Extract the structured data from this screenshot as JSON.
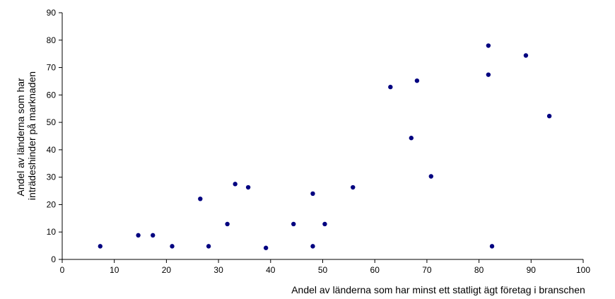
{
  "chart_data": {
    "type": "scatter",
    "xlabel": "Andel av länderna som har minst ett statligt ägt företag i branschen",
    "ylabel": [
      "Andel av länderna som har",
      "inträdeshinder på marknaden"
    ],
    "xlim": [
      0,
      100
    ],
    "ylim": [
      0,
      90
    ],
    "xticks": [
      0,
      10,
      20,
      30,
      40,
      50,
      60,
      70,
      80,
      90,
      100
    ],
    "yticks": [
      0,
      10,
      20,
      30,
      40,
      50,
      60,
      70,
      80,
      90
    ],
    "grid": false,
    "legend": "none",
    "colors": {
      "marker": "#000080",
      "axis": "#000000"
    },
    "points": [
      {
        "x": 7.3,
        "y": 4.8
      },
      {
        "x": 14.6,
        "y": 8.8
      },
      {
        "x": 17.4,
        "y": 8.8
      },
      {
        "x": 21.1,
        "y": 4.8
      },
      {
        "x": 26.5,
        "y": 22.1
      },
      {
        "x": 28.1,
        "y": 4.8
      },
      {
        "x": 31.7,
        "y": 12.9
      },
      {
        "x": 33.2,
        "y": 27.5
      },
      {
        "x": 35.7,
        "y": 26.3
      },
      {
        "x": 39.1,
        "y": 4.2
      },
      {
        "x": 44.4,
        "y": 12.9
      },
      {
        "x": 48.1,
        "y": 4.8
      },
      {
        "x": 48.1,
        "y": 24.0
      },
      {
        "x": 50.4,
        "y": 12.9
      },
      {
        "x": 55.8,
        "y": 26.3
      },
      {
        "x": 63.0,
        "y": 62.9
      },
      {
        "x": 67.0,
        "y": 44.3
      },
      {
        "x": 68.1,
        "y": 65.2
      },
      {
        "x": 70.8,
        "y": 30.3
      },
      {
        "x": 81.8,
        "y": 78.0
      },
      {
        "x": 81.8,
        "y": 67.4
      },
      {
        "x": 82.5,
        "y": 4.8
      },
      {
        "x": 89.0,
        "y": 74.4
      },
      {
        "x": 93.5,
        "y": 52.3
      }
    ]
  }
}
